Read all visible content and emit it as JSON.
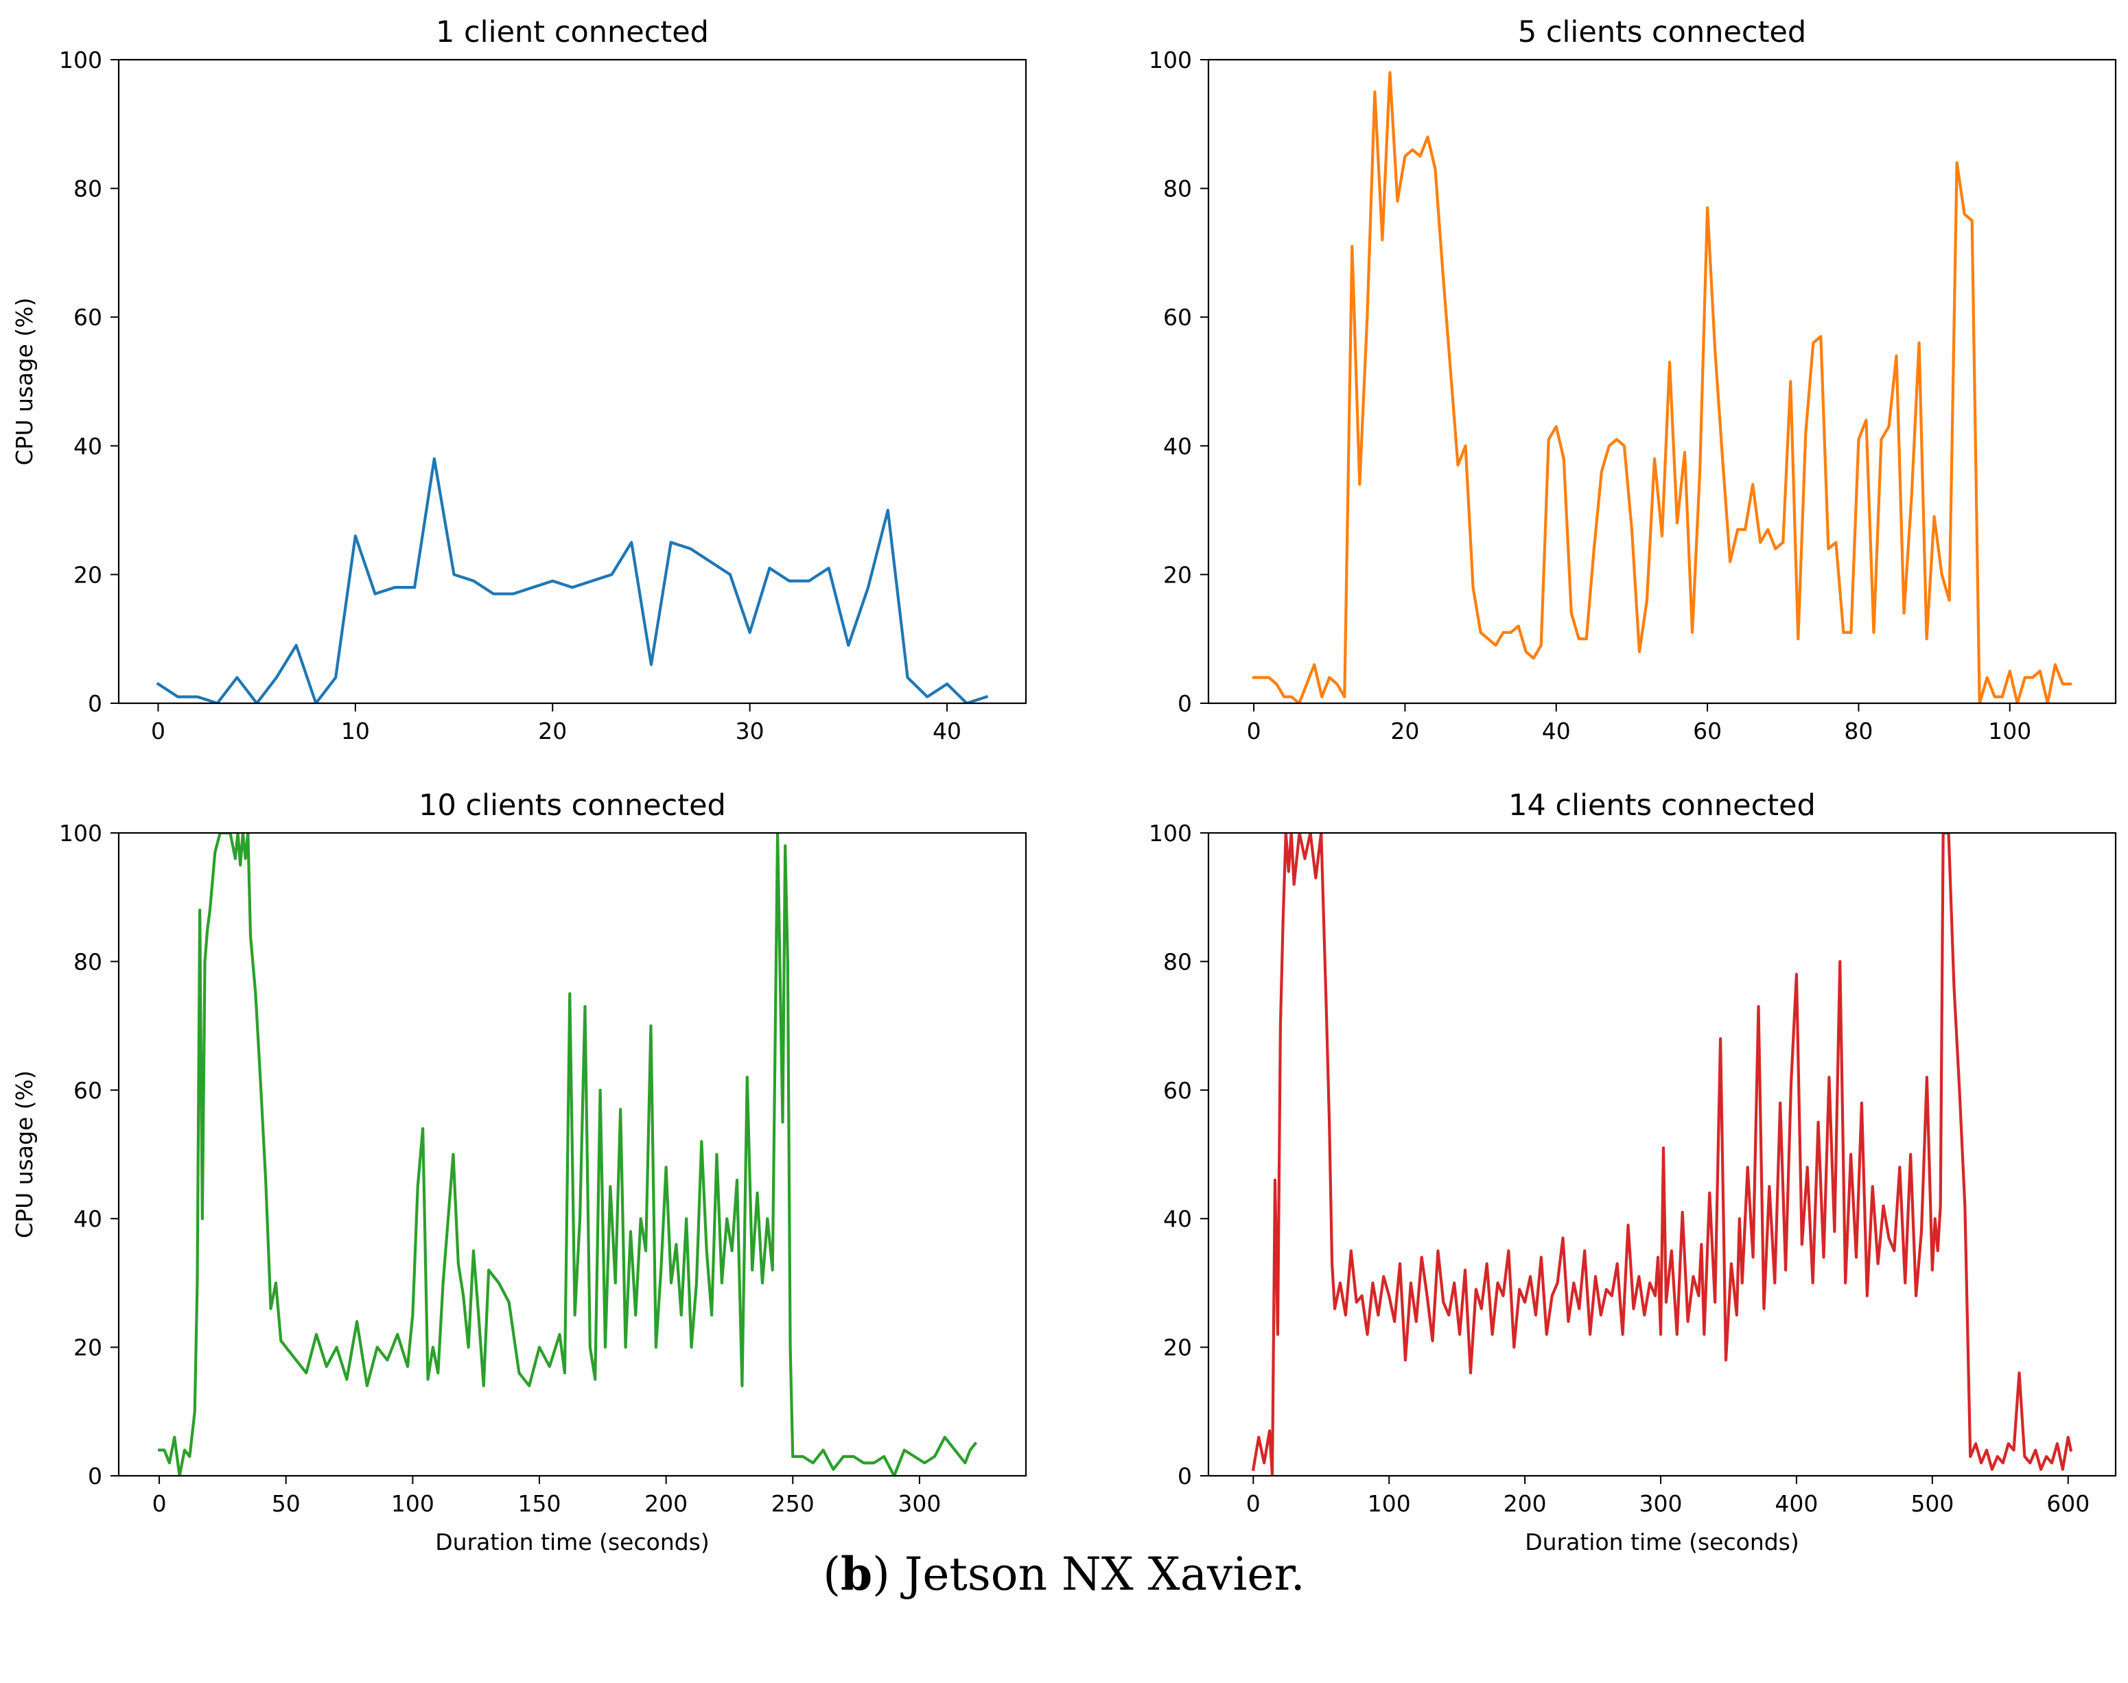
{
  "caption": {
    "letter": "b",
    "text": "Jetson NX Xavier."
  },
  "chart_data": [
    {
      "type": "line",
      "title": "1 client connected",
      "xlabel": "",
      "ylabel": "CPU usage (%)",
      "xlim": [
        -2,
        44
      ],
      "ylim": [
        0,
        100
      ],
      "xticks": [
        0,
        10,
        20,
        30,
        40
      ],
      "yticks": [
        0,
        20,
        40,
        60,
        80,
        100
      ],
      "color": "#1f77b4",
      "series": [
        {
          "name": "1 client connected",
          "x": [
            0,
            1,
            2,
            3,
            4,
            5,
            6,
            7,
            8,
            9,
            10,
            11,
            12,
            13,
            14,
            15,
            16,
            17,
            18,
            19,
            20,
            21,
            22,
            23,
            24,
            25,
            26,
            27,
            28,
            29,
            30,
            31,
            32,
            33,
            34,
            35,
            36,
            37,
            38,
            39,
            40,
            41,
            42
          ],
          "y": [
            3,
            1,
            1,
            0,
            4,
            0,
            4,
            9,
            0,
            4,
            26,
            17,
            18,
            18,
            38,
            20,
            19,
            17,
            17,
            18,
            19,
            18,
            19,
            20,
            25,
            6,
            25,
            24,
            22,
            20,
            11,
            21,
            19,
            19,
            21,
            9,
            18,
            30,
            4,
            1,
            3,
            0,
            1
          ]
        }
      ]
    },
    {
      "type": "line",
      "title": "5 clients connected",
      "xlabel": "",
      "ylabel": "",
      "xlim": [
        -6,
        114
      ],
      "ylim": [
        0,
        100
      ],
      "xticks": [
        0,
        20,
        40,
        60,
        80,
        100
      ],
      "yticks": [
        0,
        20,
        40,
        60,
        80,
        100
      ],
      "color": "#ff7f0e",
      "series": [
        {
          "name": "5 clients connected",
          "x": [
            0,
            1,
            2,
            3,
            4,
            5,
            6,
            7,
            8,
            9,
            10,
            11,
            12,
            13,
            14,
            15,
            16,
            17,
            18,
            19,
            20,
            21,
            22,
            23,
            24,
            25,
            26,
            27,
            28,
            29,
            30,
            31,
            32,
            33,
            34,
            35,
            36,
            37,
            38,
            39,
            40,
            41,
            42,
            43,
            44,
            45,
            46,
            47,
            48,
            49,
            50,
            51,
            52,
            53,
            54,
            55,
            56,
            57,
            58,
            59,
            60,
            61,
            62,
            63,
            64,
            65,
            66,
            67,
            68,
            69,
            70,
            71,
            72,
            73,
            74,
            75,
            76,
            77,
            78,
            79,
            80,
            81,
            82,
            83,
            84,
            85,
            86,
            87,
            88,
            89,
            90,
            91,
            92,
            93,
            94,
            95,
            96,
            97,
            98,
            99,
            100,
            101,
            102,
            103,
            104,
            105,
            106,
            107,
            108
          ],
          "y": [
            4,
            4,
            4,
            3,
            1,
            1,
            0,
            3,
            6,
            1,
            4,
            3,
            1,
            71,
            34,
            60,
            95,
            72,
            98,
            78,
            85,
            86,
            85,
            88,
            83,
            67,
            52,
            37,
            40,
            18,
            11,
            10,
            9,
            11,
            11,
            12,
            8,
            7,
            9,
            41,
            43,
            38,
            14,
            10,
            10,
            24,
            36,
            40,
            41,
            40,
            27,
            8,
            16,
            38,
            26,
            53,
            28,
            39,
            11,
            36,
            77,
            55,
            38,
            22,
            27,
            27,
            34,
            25,
            27,
            24,
            25,
            50,
            10,
            42,
            56,
            57,
            24,
            25,
            11,
            11,
            41,
            44,
            11,
            41,
            43,
            54,
            14,
            32,
            56,
            10,
            29,
            20,
            16,
            84,
            76,
            75,
            0,
            4,
            1,
            1,
            5,
            0,
            4,
            4,
            5,
            0,
            6,
            3,
            3
          ]
        }
      ]
    },
    {
      "type": "line",
      "title": "10 clients connected",
      "xlabel": "Duration time (seconds)",
      "ylabel": "CPU usage (%)",
      "xlim": [
        -16,
        342
      ],
      "ylim": [
        0,
        100
      ],
      "xticks": [
        0,
        50,
        100,
        150,
        200,
        250,
        300
      ],
      "yticks": [
        0,
        20,
        40,
        60,
        80,
        100
      ],
      "color": "#2ca02c",
      "series": [
        {
          "name": "10 clients connected",
          "x": [
            0,
            2,
            4,
            6,
            8,
            10,
            12,
            14,
            15,
            16,
            17,
            18,
            19,
            20,
            22,
            24,
            26,
            28,
            30,
            31,
            32,
            33,
            34,
            35,
            36,
            38,
            40,
            42,
            44,
            46,
            48,
            50,
            54,
            58,
            62,
            66,
            70,
            74,
            78,
            82,
            86,
            90,
            94,
            98,
            100,
            102,
            104,
            106,
            108,
            110,
            112,
            114,
            116,
            118,
            120,
            122,
            124,
            126,
            128,
            130,
            134,
            138,
            142,
            146,
            150,
            154,
            158,
            160,
            162,
            164,
            166,
            168,
            170,
            172,
            174,
            176,
            178,
            180,
            182,
            184,
            186,
            188,
            190,
            192,
            194,
            196,
            198,
            200,
            202,
            204,
            206,
            208,
            210,
            212,
            214,
            216,
            218,
            220,
            222,
            224,
            226,
            228,
            230,
            232,
            234,
            236,
            238,
            240,
            242,
            244,
            246,
            247,
            248,
            249,
            250,
            254,
            258,
            262,
            266,
            270,
            274,
            278,
            282,
            286,
            290,
            294,
            298,
            302,
            306,
            310,
            314,
            318,
            320,
            322
          ],
          "y": [
            4,
            4,
            2,
            6,
            0,
            4,
            3,
            10,
            30,
            88,
            40,
            80,
            85,
            88,
            97,
            100,
            100,
            100,
            96,
            100,
            95,
            100,
            96,
            100,
            84,
            75,
            61,
            46,
            26,
            30,
            21,
            20,
            18,
            16,
            22,
            17,
            20,
            15,
            24,
            14,
            20,
            18,
            22,
            17,
            25,
            45,
            54,
            15,
            20,
            16,
            30,
            40,
            50,
            33,
            28,
            20,
            35,
            25,
            14,
            32,
            30,
            27,
            16,
            14,
            20,
            17,
            22,
            16,
            75,
            25,
            40,
            73,
            20,
            15,
            60,
            20,
            45,
            30,
            57,
            20,
            38,
            25,
            40,
            35,
            70,
            20,
            32,
            48,
            30,
            36,
            25,
            40,
            20,
            30,
            52,
            35,
            25,
            50,
            30,
            40,
            35,
            46,
            14,
            62,
            32,
            44,
            30,
            40,
            32,
            100,
            55,
            98,
            80,
            20,
            3,
            3,
            2,
            4,
            1,
            3,
            3,
            2,
            2,
            3,
            0,
            4,
            3,
            2,
            3,
            6,
            4,
            2,
            4,
            5
          ]
        }
      ]
    },
    {
      "type": "line",
      "title": "14 clients connected",
      "xlabel": "Duration time (seconds)",
      "ylabel": "",
      "xlim": [
        -33,
        635
      ],
      "ylim": [
        0,
        100
      ],
      "xticks": [
        0,
        100,
        200,
        300,
        400,
        500,
        600
      ],
      "yticks": [
        0,
        20,
        40,
        60,
        80,
        100
      ],
      "color": "#d62728",
      "series": [
        {
          "name": "14 clients connected",
          "x": [
            0,
            4,
            8,
            12,
            14,
            16,
            18,
            20,
            22,
            24,
            26,
            28,
            30,
            34,
            38,
            42,
            46,
            50,
            54,
            56,
            58,
            60,
            64,
            68,
            72,
            76,
            80,
            84,
            88,
            92,
            96,
            100,
            104,
            108,
            112,
            116,
            120,
            124,
            128,
            132,
            136,
            140,
            144,
            148,
            152,
            156,
            160,
            164,
            168,
            172,
            176,
            180,
            184,
            188,
            192,
            196,
            200,
            204,
            208,
            212,
            216,
            220,
            224,
            228,
            232,
            236,
            240,
            244,
            248,
            252,
            256,
            260,
            264,
            268,
            272,
            276,
            280,
            284,
            288,
            292,
            296,
            298,
            300,
            302,
            304,
            308,
            312,
            316,
            320,
            324,
            328,
            330,
            332,
            336,
            340,
            344,
            348,
            352,
            356,
            358,
            360,
            364,
            368,
            372,
            376,
            380,
            384,
            388,
            392,
            396,
            400,
            404,
            408,
            412,
            416,
            420,
            424,
            428,
            432,
            436,
            440,
            444,
            448,
            452,
            456,
            460,
            464,
            468,
            472,
            476,
            480,
            484,
            488,
            492,
            496,
            500,
            502,
            504,
            506,
            508,
            512,
            516,
            520,
            524,
            528,
            532,
            536,
            540,
            544,
            548,
            552,
            556,
            560,
            564,
            568,
            572,
            576,
            580,
            584,
            588,
            592,
            596,
            600,
            602
          ],
          "y": [
            1,
            6,
            2,
            7,
            0,
            46,
            22,
            70,
            87,
            100,
            94,
            100,
            92,
            100,
            96,
            100,
            93,
            100,
            71,
            55,
            33,
            26,
            30,
            25,
            35,
            27,
            28,
            22,
            30,
            25,
            31,
            28,
            24,
            33,
            18,
            30,
            24,
            34,
            28,
            21,
            35,
            27,
            25,
            30,
            22,
            32,
            16,
            29,
            26,
            33,
            22,
            30,
            28,
            35,
            20,
            29,
            27,
            31,
            25,
            34,
            22,
            28,
            30,
            37,
            24,
            30,
            26,
            35,
            22,
            31,
            25,
            29,
            28,
            33,
            22,
            39,
            26,
            31,
            25,
            30,
            28,
            34,
            22,
            51,
            27,
            35,
            22,
            41,
            24,
            31,
            28,
            36,
            22,
            44,
            27,
            68,
            18,
            33,
            25,
            40,
            30,
            48,
            34,
            73,
            26,
            45,
            30,
            58,
            32,
            61,
            78,
            36,
            48,
            30,
            55,
            34,
            62,
            38,
            80,
            30,
            50,
            34,
            58,
            28,
            45,
            33,
            42,
            37,
            35,
            48,
            30,
            50,
            28,
            38,
            62,
            32,
            40,
            35,
            42,
            100,
            100,
            76,
            60,
            42,
            3,
            5,
            2,
            4,
            1,
            3,
            2,
            5,
            4,
            16,
            3,
            2,
            4,
            1,
            3,
            2,
            5,
            1,
            6,
            4
          ]
        }
      ]
    }
  ]
}
